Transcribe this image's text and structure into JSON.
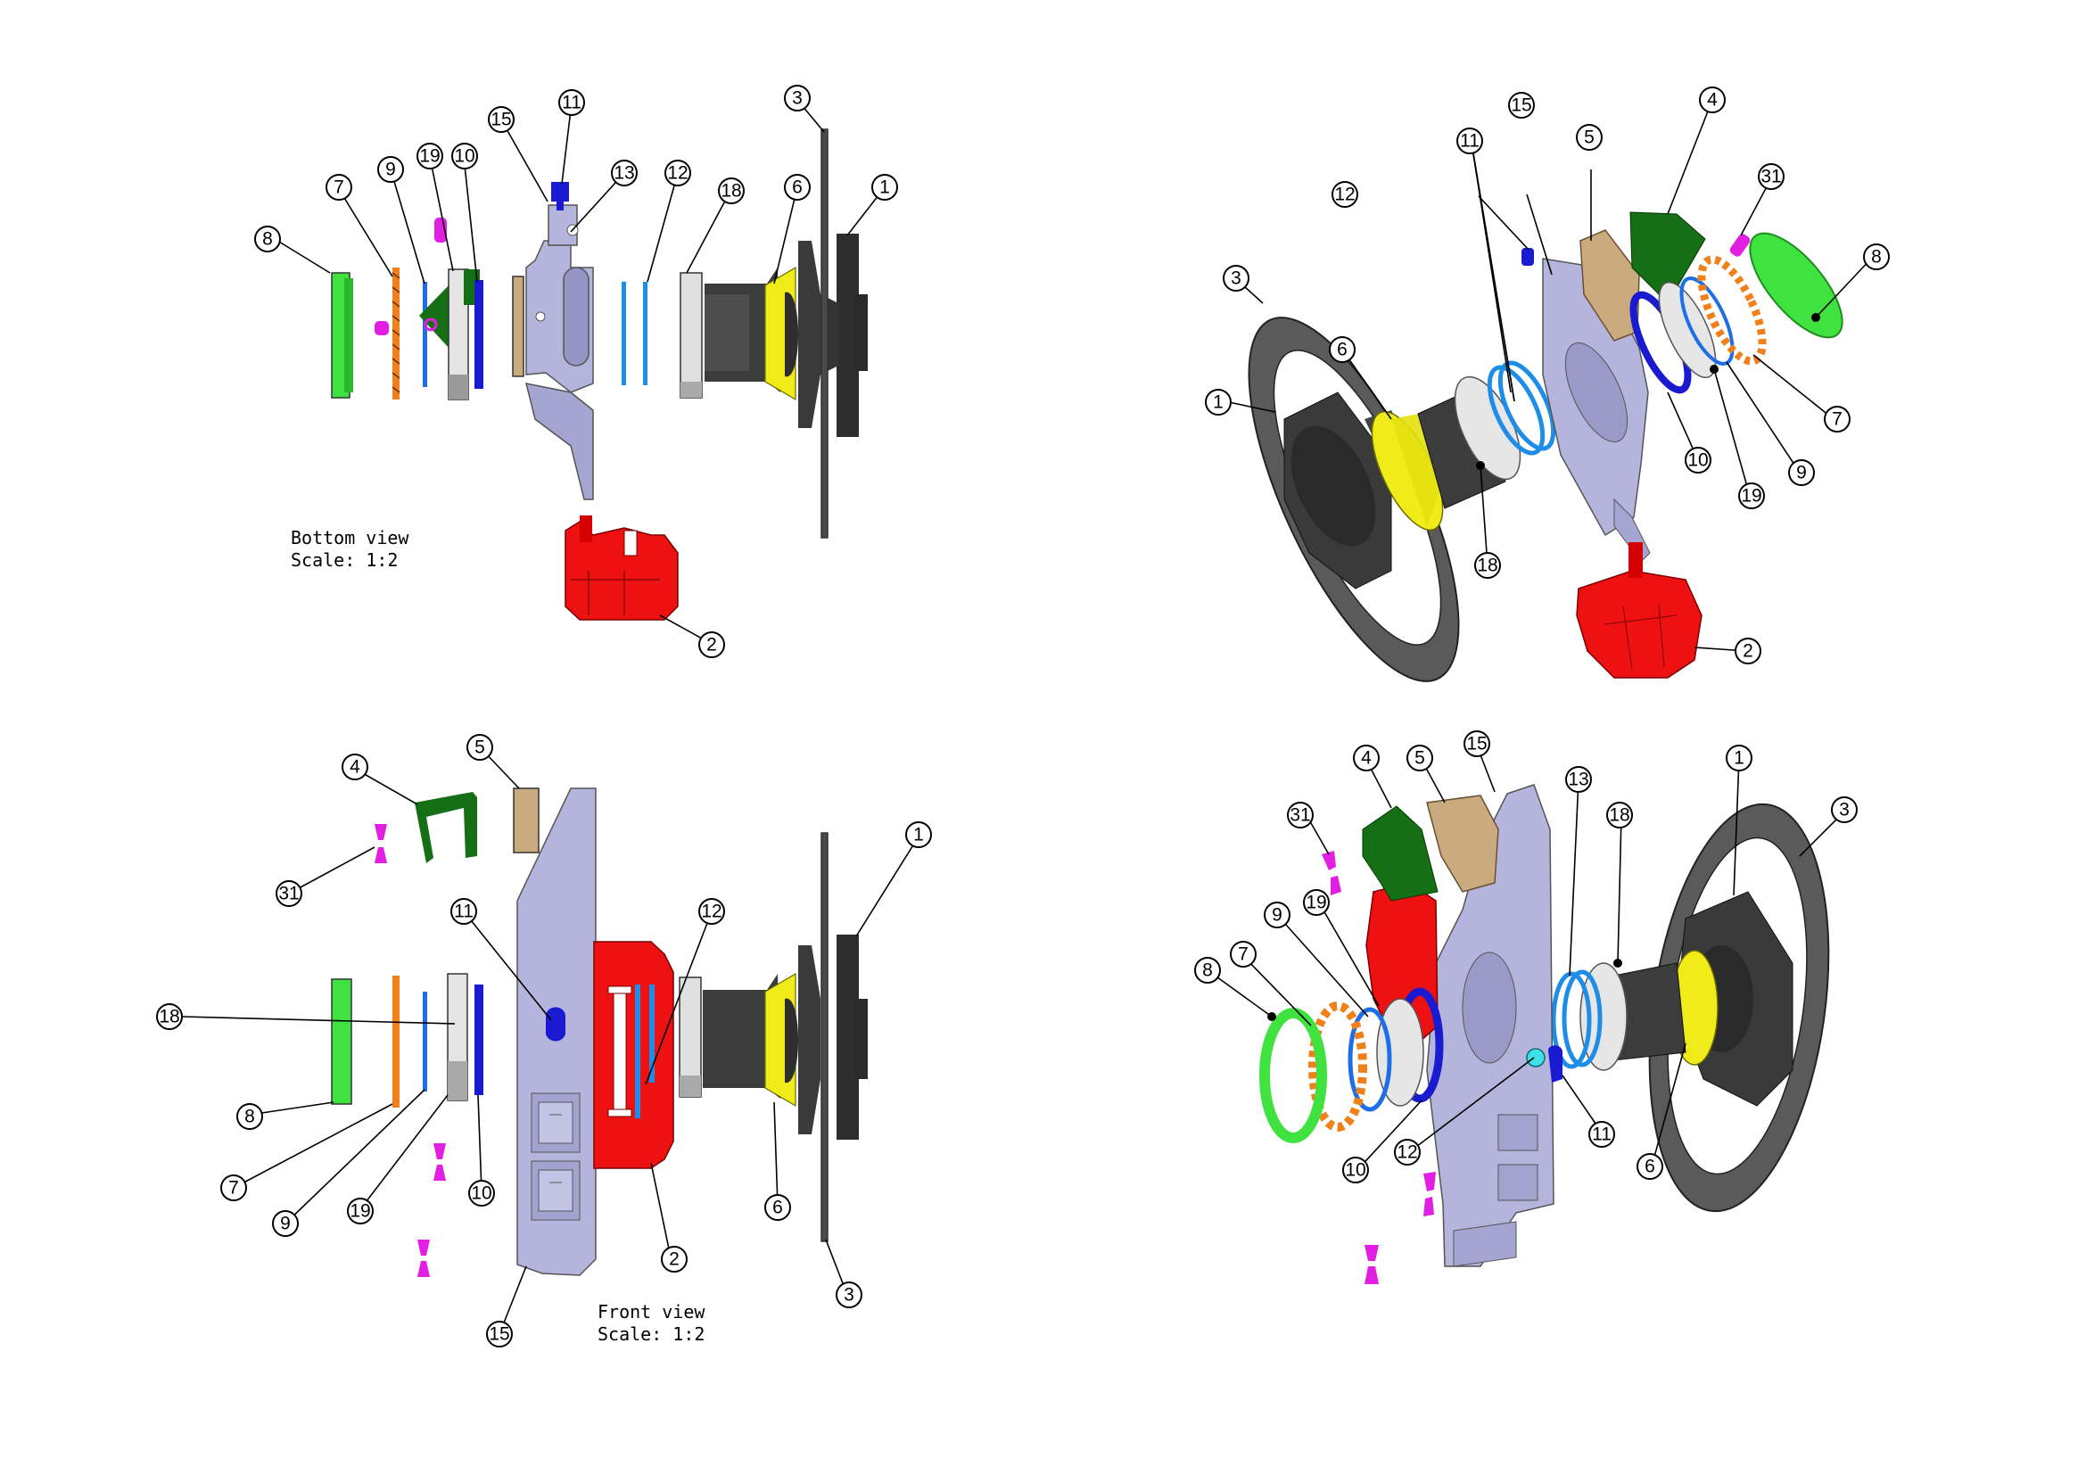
{
  "views": {
    "bottom": {
      "title": "Bottom view",
      "scale": "Scale:  1:2",
      "balloons": [
        "1",
        "2",
        "3",
        "6",
        "7",
        "8",
        "9",
        "10",
        "11",
        "12",
        "13",
        "15",
        "18",
        "19"
      ]
    },
    "front": {
      "title": "Front view",
      "scale": "Scale:  1:2",
      "balloons": [
        "1",
        "2",
        "3",
        "4",
        "5",
        "6",
        "7",
        "8",
        "9",
        "10",
        "11",
        "12",
        "15",
        "18",
        "19",
        "31"
      ]
    },
    "iso_upper": {
      "balloons": [
        "1",
        "2",
        "3",
        "4",
        "5",
        "6",
        "7",
        "8",
        "9",
        "10",
        "11",
        "12",
        "15",
        "18",
        "19",
        "31"
      ]
    },
    "iso_lower": {
      "balloons": [
        "1",
        "3",
        "4",
        "5",
        "6",
        "7",
        "8",
        "9",
        "10",
        "11",
        "12",
        "13",
        "15",
        "18",
        "19",
        "31"
      ]
    }
  },
  "part_colors": {
    "1": "#3c3c3c",
    "2": "#ee1111",
    "3": "#4a4a4a",
    "4": "#157015",
    "5": "#c9ab7f",
    "6": "#f0ec1a",
    "7": "#f0801a",
    "8": "#3fe23f",
    "9": "#1e6ee8",
    "10": "#1a1ad0",
    "11": "#1a1ad0",
    "12": "#1e8de8",
    "13": "#40e0e8",
    "15": "#b4b4dc",
    "18": "#d4d4d4",
    "19": "#e8e8e8",
    "31": "#e21ee2"
  }
}
